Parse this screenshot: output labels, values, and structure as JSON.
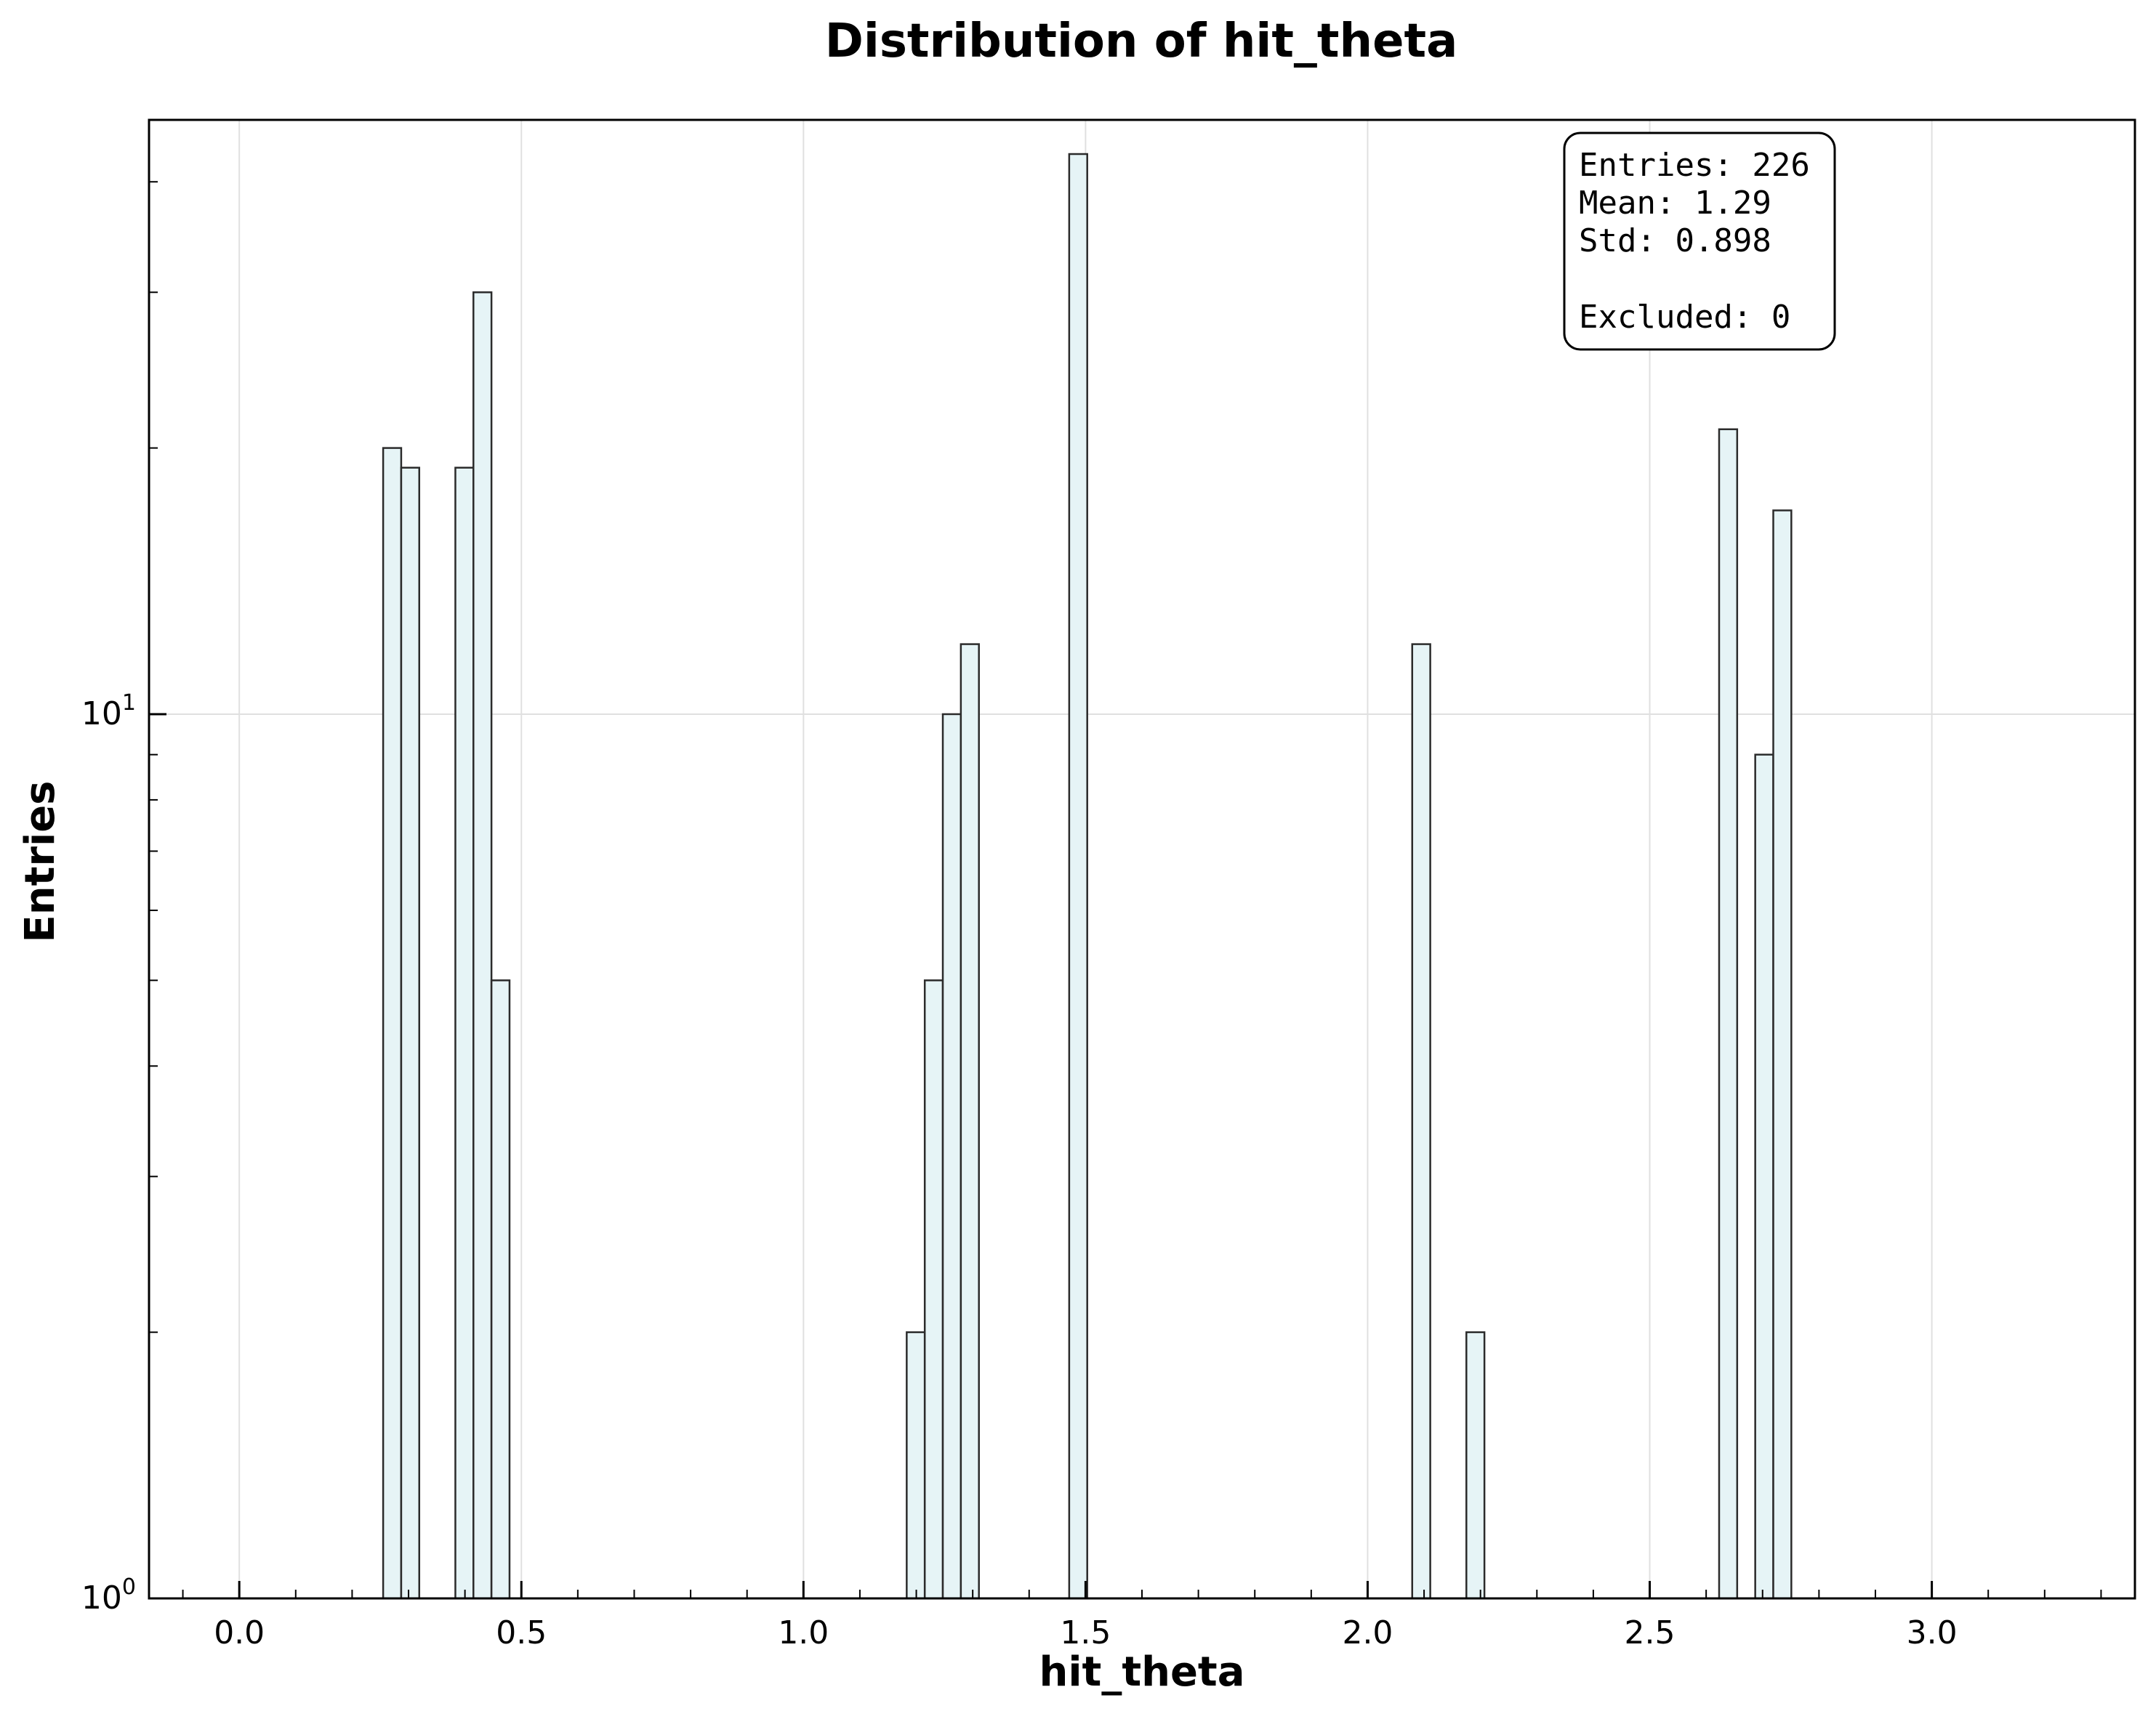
{
  "chart_data": {
    "type": "bar",
    "title": "Distribution of hit_theta",
    "xlabel": "hit_theta",
    "ylabel": "Entries",
    "xlim": [
      -0.16,
      3.36
    ],
    "ylim": [
      1,
      47
    ],
    "yscale": "log",
    "grid": true,
    "bar_color": "#e6f4f6",
    "bar_edge_color": "#2b2b2b",
    "x_ticks": [
      "0.0",
      "0.5",
      "1.0",
      "1.5",
      "2.0",
      "2.5",
      "3.0"
    ],
    "x_tick_values": [
      0.0,
      0.5,
      1.0,
      1.5,
      2.0,
      2.5,
      3.0
    ],
    "y_ticks": [
      {
        "value": 1,
        "base": "10",
        "exp": "0"
      },
      {
        "value": 10,
        "base": "10",
        "exp": "1"
      }
    ],
    "bin_width": 0.032,
    "bins": [
      {
        "x": 0.255,
        "value": 20
      },
      {
        "x": 0.287,
        "value": 19
      },
      {
        "x": 0.383,
        "value": 19
      },
      {
        "x": 0.415,
        "value": 30
      },
      {
        "x": 0.447,
        "value": 5
      },
      {
        "x": 1.183,
        "value": 2
      },
      {
        "x": 1.215,
        "value": 5
      },
      {
        "x": 1.247,
        "value": 10
      },
      {
        "x": 1.279,
        "value": 12
      },
      {
        "x": 1.471,
        "value": 43
      },
      {
        "x": 2.079,
        "value": 12
      },
      {
        "x": 2.175,
        "value": 2
      },
      {
        "x": 2.623,
        "value": 21
      },
      {
        "x": 2.687,
        "value": 9
      },
      {
        "x": 2.719,
        "value": 17
      }
    ],
    "stats_box": {
      "entries": "Entries: 226",
      "mean": "Mean: 1.29",
      "std": "Std: 0.898",
      "excluded": "Excluded: 0"
    }
  }
}
